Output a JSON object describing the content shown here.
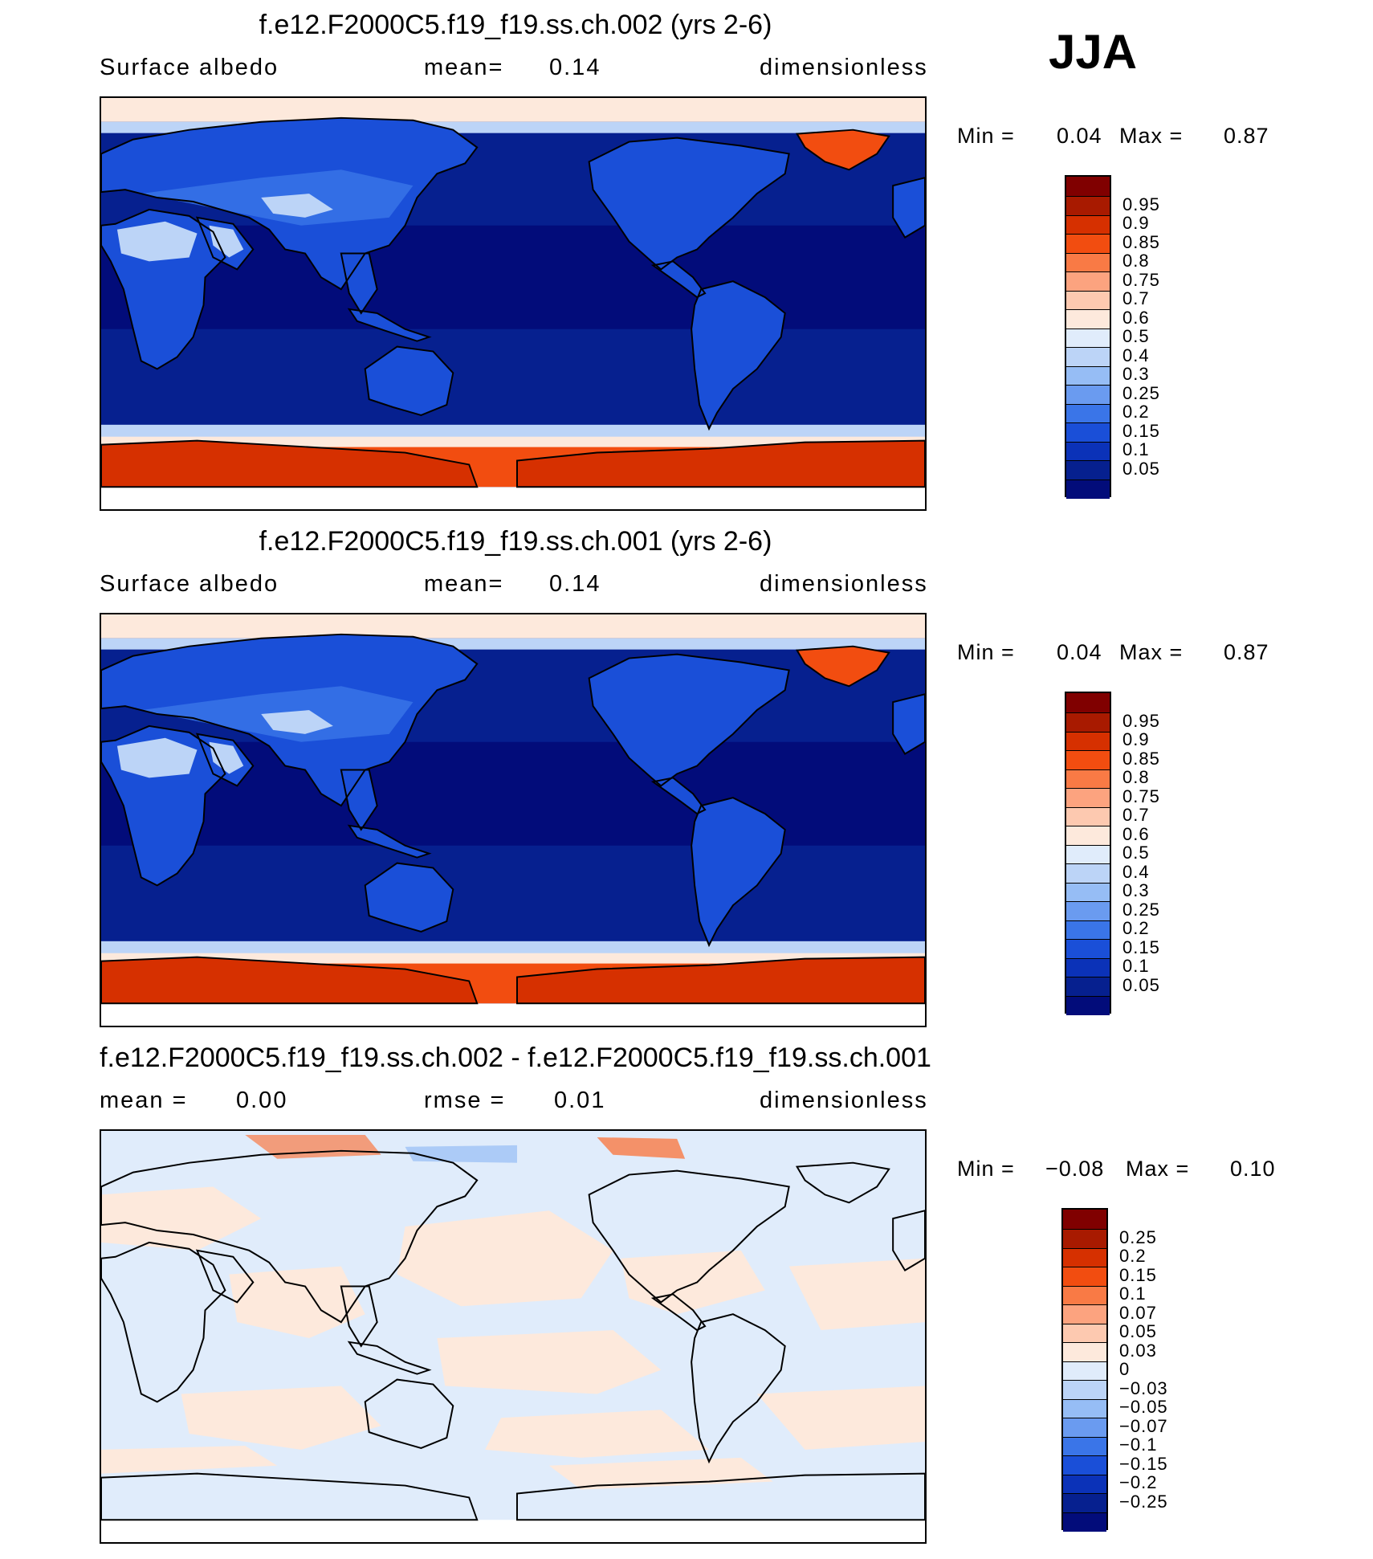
{
  "season_label": "JJA",
  "panels": [
    {
      "title": "f.e12.F2000C5.f19_f19.ss.ch.002 (yrs 2-6)",
      "left_label": "Surface albedo",
      "mid_label": "mean=",
      "mid_value": "0.14",
      "units": "dimensionless",
      "min_label": "Min =",
      "min_value": "0.04",
      "max_label": "Max =",
      "max_value": "0.87",
      "colorbar": {
        "colors": [
          "#800000",
          "#a81a00",
          "#d63000",
          "#f24d10",
          "#f97a45",
          "#fca37f",
          "#fdc9b0",
          "#fde9dc",
          "#e0ecfb",
          "#bcd4f7",
          "#96bdf5",
          "#6a9bf0",
          "#3a75e8",
          "#1a4fd8",
          "#0b32b8",
          "#06208f",
          "#020c7a"
        ],
        "labels": [
          "0.95",
          "0.9",
          "0.85",
          "0.8",
          "0.75",
          "0.7",
          "0.6",
          "0.5",
          "0.4",
          "0.3",
          "0.25",
          "0.2",
          "0.15",
          "0.1",
          "0.05"
        ]
      }
    },
    {
      "title": "f.e12.F2000C5.f19_f19.ss.ch.001 (yrs 2-6)",
      "left_label": "Surface albedo",
      "mid_label": "mean=",
      "mid_value": "0.14",
      "units": "dimensionless",
      "min_label": "Min =",
      "min_value": "0.04",
      "max_label": "Max =",
      "max_value": "0.87",
      "colorbar": {
        "colors": [
          "#800000",
          "#a81a00",
          "#d63000",
          "#f24d10",
          "#f97a45",
          "#fca37f",
          "#fdc9b0",
          "#fde9dc",
          "#e0ecfb",
          "#bcd4f7",
          "#96bdf5",
          "#6a9bf0",
          "#3a75e8",
          "#1a4fd8",
          "#0b32b8",
          "#06208f",
          "#020c7a"
        ],
        "labels": [
          "0.95",
          "0.9",
          "0.85",
          "0.8",
          "0.75",
          "0.7",
          "0.6",
          "0.5",
          "0.4",
          "0.3",
          "0.25",
          "0.2",
          "0.15",
          "0.1",
          "0.05"
        ]
      }
    },
    {
      "title": "f.e12.F2000C5.f19_f19.ss.ch.002 - f.e12.F2000C5.f19_f19.ss.ch.001",
      "left_label": "mean =",
      "left_value": "0.00",
      "mid_label": "rmse =",
      "mid_value": "0.01",
      "units": "dimensionless",
      "min_label": "Min =",
      "min_value": "−0.08",
      "max_label": "Max =",
      "max_value": "0.10",
      "colorbar": {
        "colors": [
          "#800000",
          "#a81a00",
          "#d63000",
          "#f24d10",
          "#f97a45",
          "#fca37f",
          "#fdc9b0",
          "#fde9dc",
          "#e0ecfb",
          "#bcd4f7",
          "#96bdf5",
          "#6a9bf0",
          "#3a75e8",
          "#1a4fd8",
          "#0b32b8",
          "#06208f",
          "#020c7a"
        ],
        "labels": [
          "0.25",
          "0.2",
          "0.15",
          "0.1",
          "0.07",
          "0.05",
          "0.03",
          "0",
          "−0.03",
          "−0.05",
          "−0.07",
          "−0.1",
          "−0.15",
          "−0.2",
          "−0.25"
        ]
      }
    }
  ],
  "map_colors": {
    "deep_ocean": "#020c7a",
    "ocean": "#06208f",
    "land_low": "#1a4fd8",
    "land_mid": "#3a75e8",
    "desert": "#bcd4f7",
    "ice_edge": "#fde9dc",
    "ice": "#f24d10",
    "ice_cap": "#d63000",
    "diff_pos": "#fde9dc",
    "diff_neg": "#e0ecfb",
    "diff_strong_pos": "#f97a45",
    "diff_strong_neg": "#96bdf5",
    "coastline": "#000000"
  }
}
